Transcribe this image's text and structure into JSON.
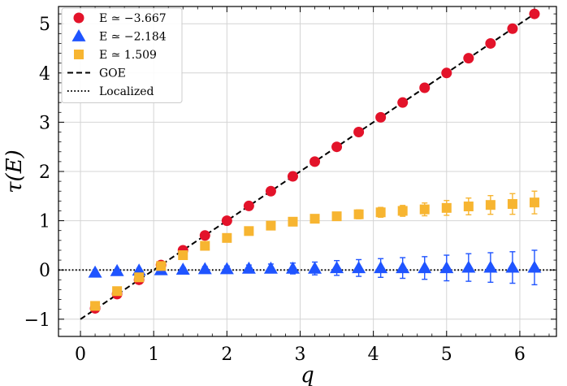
{
  "chart_data": {
    "type": "scatter",
    "xlabel": "q",
    "ylabel": "τ(E)",
    "xlim": [
      -0.3,
      6.5
    ],
    "ylim": [
      -1.35,
      5.35
    ],
    "xticks": [
      0,
      1,
      2,
      3,
      4,
      5,
      6
    ],
    "yticks": [
      -1,
      0,
      1,
      2,
      3,
      4,
      5
    ],
    "xtick_labels": [
      "0",
      "1",
      "2",
      "3",
      "4",
      "5",
      "6"
    ],
    "ytick_labels": [
      "−1",
      "0",
      "1",
      "2",
      "3",
      "4",
      "5"
    ],
    "grid": true,
    "legend_position": "top-left",
    "x": [
      0.2,
      0.5,
      0.8,
      1.1,
      1.4,
      1.7,
      2.0,
      2.3,
      2.6,
      2.9,
      3.2,
      3.5,
      3.8,
      4.1,
      4.4,
      4.7,
      5.0,
      5.3,
      5.6,
      5.9,
      6.2
    ],
    "series": [
      {
        "name": "E ≃ −3.667",
        "marker": "circle",
        "color": "#e3132a",
        "values": [
          -0.78,
          -0.49,
          -0.2,
          0.1,
          0.4,
          0.7,
          1.0,
          1.3,
          1.6,
          1.9,
          2.2,
          2.5,
          2.8,
          3.1,
          3.4,
          3.7,
          4.0,
          4.3,
          4.6,
          4.9,
          5.2
        ],
        "errors": [
          0.02,
          0.02,
          0.02,
          0.02,
          0.02,
          0.02,
          0.02,
          0.02,
          0.02,
          0.02,
          0.02,
          0.02,
          0.02,
          0.02,
          0.02,
          0.02,
          0.02,
          0.02,
          0.02,
          0.02,
          0.02
        ]
      },
      {
        "name": "E ≃ −2.184",
        "marker": "triangle",
        "color": "#1f54ff",
        "values": [
          -0.05,
          -0.02,
          -0.01,
          0.0,
          0.01,
          0.02,
          0.02,
          0.03,
          0.03,
          0.03,
          0.03,
          0.04,
          0.04,
          0.04,
          0.04,
          0.04,
          0.04,
          0.05,
          0.05,
          0.05,
          0.05
        ],
        "errors": [
          0.01,
          0.02,
          0.02,
          0.03,
          0.04,
          0.05,
          0.06,
          0.07,
          0.09,
          0.11,
          0.13,
          0.15,
          0.17,
          0.19,
          0.21,
          0.23,
          0.26,
          0.28,
          0.3,
          0.32,
          0.35
        ]
      },
      {
        "name": "E ≃ 1.509",
        "marker": "square",
        "color": "#f7b531",
        "values": [
          -0.73,
          -0.43,
          -0.15,
          0.08,
          0.3,
          0.49,
          0.65,
          0.79,
          0.9,
          0.98,
          1.04,
          1.09,
          1.13,
          1.17,
          1.2,
          1.23,
          1.26,
          1.29,
          1.32,
          1.34,
          1.37
        ],
        "errors": [
          0.01,
          0.01,
          0.01,
          0.02,
          0.02,
          0.03,
          0.03,
          0.04,
          0.05,
          0.06,
          0.07,
          0.08,
          0.09,
          0.1,
          0.11,
          0.13,
          0.15,
          0.17,
          0.19,
          0.21,
          0.23
        ]
      }
    ],
    "lines": [
      {
        "name": "GOE",
        "style": "dashed",
        "color": "#000000",
        "x": [
          0,
          6.2
        ],
        "y": [
          -1,
          5.2
        ]
      },
      {
        "name": "Localized",
        "style": "dotted",
        "color": "#000000",
        "x": [
          -0.3,
          6.5
        ],
        "y": [
          0,
          0
        ]
      }
    ]
  }
}
